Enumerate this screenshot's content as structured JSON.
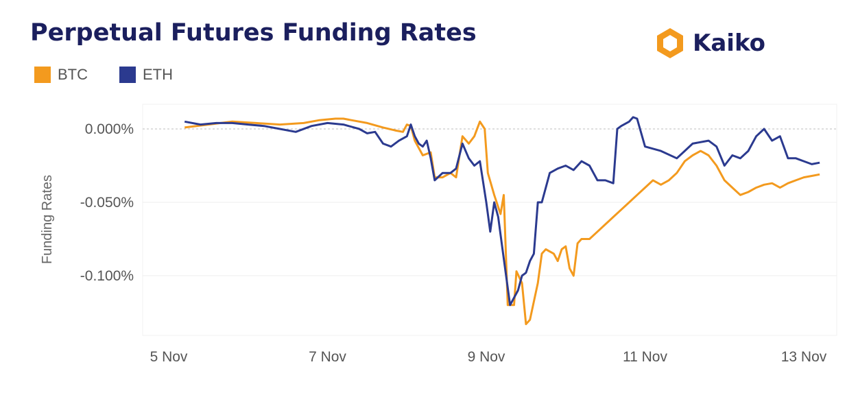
{
  "title": "Perpetual Futures Funding Rates",
  "logo": {
    "text": "Kaiko",
    "icon": "kaiko-logo-icon",
    "color": "#f39a1e"
  },
  "chart_data": {
    "type": "line",
    "title": "Perpetual Futures Funding Rates",
    "xlabel": "",
    "ylabel": "Funding Rates",
    "x_ticks": [
      "5 Nov",
      "7 Nov",
      "9 Nov",
      "11 Nov",
      "13 Nov"
    ],
    "y_ticks": [
      "0.000%",
      "-0.050%",
      "-0.100%"
    ],
    "y_tick_values": [
      0,
      -0.05,
      -0.1
    ],
    "xlim": [
      5.0,
      13.0
    ],
    "ylim": [
      -0.14,
      0.017
    ],
    "grid": true,
    "legend_position": "top-left",
    "series": [
      {
        "name": "BTC",
        "color": "#f39a1e",
        "points": [
          [
            5.2,
            0.001
          ],
          [
            5.5,
            0.003
          ],
          [
            5.8,
            0.005
          ],
          [
            6.1,
            0.004
          ],
          [
            6.4,
            0.003
          ],
          [
            6.7,
            0.004
          ],
          [
            6.9,
            0.006
          ],
          [
            7.1,
            0.007
          ],
          [
            7.2,
            0.007
          ],
          [
            7.3,
            0.006
          ],
          [
            7.5,
            0.004
          ],
          [
            7.7,
            0.001
          ],
          [
            7.85,
            -0.001
          ],
          [
            7.95,
            -0.002
          ],
          [
            8.0,
            0.003
          ],
          [
            8.05,
            0.002
          ],
          [
            8.1,
            -0.008
          ],
          [
            8.2,
            -0.018
          ],
          [
            8.3,
            -0.016
          ],
          [
            8.35,
            -0.033
          ],
          [
            8.45,
            -0.033
          ],
          [
            8.55,
            -0.03
          ],
          [
            8.62,
            -0.033
          ],
          [
            8.7,
            -0.005
          ],
          [
            8.78,
            -0.01
          ],
          [
            8.85,
            -0.005
          ],
          [
            8.92,
            0.005
          ],
          [
            8.98,
            0.0
          ],
          [
            9.02,
            -0.03
          ],
          [
            9.1,
            -0.045
          ],
          [
            9.18,
            -0.058
          ],
          [
            9.22,
            -0.045
          ],
          [
            9.27,
            -0.12
          ],
          [
            9.35,
            -0.12
          ],
          [
            9.38,
            -0.097
          ],
          [
            9.45,
            -0.105
          ],
          [
            9.5,
            -0.133
          ],
          [
            9.55,
            -0.13
          ],
          [
            9.65,
            -0.105
          ],
          [
            9.7,
            -0.085
          ],
          [
            9.75,
            -0.082
          ],
          [
            9.85,
            -0.085
          ],
          [
            9.9,
            -0.09
          ],
          [
            9.95,
            -0.082
          ],
          [
            10.0,
            -0.08
          ],
          [
            10.05,
            -0.095
          ],
          [
            10.1,
            -0.1
          ],
          [
            10.15,
            -0.078
          ],
          [
            10.2,
            -0.075
          ],
          [
            10.3,
            -0.075
          ],
          [
            10.4,
            -0.07
          ],
          [
            10.5,
            -0.065
          ],
          [
            10.6,
            -0.06
          ],
          [
            10.7,
            -0.055
          ],
          [
            10.8,
            -0.05
          ],
          [
            10.9,
            -0.045
          ],
          [
            11.0,
            -0.04
          ],
          [
            11.1,
            -0.035
          ],
          [
            11.2,
            -0.038
          ],
          [
            11.3,
            -0.035
          ],
          [
            11.4,
            -0.03
          ],
          [
            11.5,
            -0.022
          ],
          [
            11.6,
            -0.018
          ],
          [
            11.7,
            -0.015
          ],
          [
            11.8,
            -0.018
          ],
          [
            11.9,
            -0.025
          ],
          [
            12.0,
            -0.035
          ],
          [
            12.1,
            -0.04
          ],
          [
            12.2,
            -0.045
          ],
          [
            12.3,
            -0.043
          ],
          [
            12.4,
            -0.04
          ],
          [
            12.5,
            -0.038
          ],
          [
            12.6,
            -0.037
          ],
          [
            12.7,
            -0.04
          ],
          [
            12.8,
            -0.037
          ],
          [
            12.9,
            -0.035
          ],
          [
            13.0,
            -0.033
          ],
          [
            13.1,
            -0.032
          ],
          [
            13.2,
            -0.031
          ]
        ]
      },
      {
        "name": "ETH",
        "color": "#2b3a8f",
        "points": [
          [
            5.2,
            0.005
          ],
          [
            5.4,
            0.003
          ],
          [
            5.6,
            0.004
          ],
          [
            5.8,
            0.004
          ],
          [
            6.0,
            0.003
          ],
          [
            6.2,
            0.002
          ],
          [
            6.4,
            0.0
          ],
          [
            6.6,
            -0.002
          ],
          [
            6.8,
            0.002
          ],
          [
            7.0,
            0.004
          ],
          [
            7.2,
            0.003
          ],
          [
            7.4,
            0.0
          ],
          [
            7.5,
            -0.003
          ],
          [
            7.6,
            -0.002
          ],
          [
            7.7,
            -0.01
          ],
          [
            7.8,
            -0.012
          ],
          [
            7.9,
            -0.008
          ],
          [
            8.0,
            -0.005
          ],
          [
            8.05,
            0.003
          ],
          [
            8.1,
            -0.005
          ],
          [
            8.15,
            -0.01
          ],
          [
            8.2,
            -0.012
          ],
          [
            8.25,
            -0.008
          ],
          [
            8.3,
            -0.02
          ],
          [
            8.35,
            -0.035
          ],
          [
            8.45,
            -0.03
          ],
          [
            8.55,
            -0.03
          ],
          [
            8.62,
            -0.027
          ],
          [
            8.7,
            -0.01
          ],
          [
            8.78,
            -0.02
          ],
          [
            8.85,
            -0.025
          ],
          [
            8.92,
            -0.022
          ],
          [
            9.0,
            -0.05
          ],
          [
            9.05,
            -0.07
          ],
          [
            9.1,
            -0.05
          ],
          [
            9.15,
            -0.06
          ],
          [
            9.2,
            -0.08
          ],
          [
            9.25,
            -0.1
          ],
          [
            9.3,
            -0.12
          ],
          [
            9.35,
            -0.115
          ],
          [
            9.4,
            -0.11
          ],
          [
            9.45,
            -0.1
          ],
          [
            9.5,
            -0.098
          ],
          [
            9.55,
            -0.09
          ],
          [
            9.6,
            -0.085
          ],
          [
            9.65,
            -0.05
          ],
          [
            9.7,
            -0.05
          ],
          [
            9.8,
            -0.03
          ],
          [
            9.9,
            -0.027
          ],
          [
            10.0,
            -0.025
          ],
          [
            10.1,
            -0.028
          ],
          [
            10.2,
            -0.022
          ],
          [
            10.3,
            -0.025
          ],
          [
            10.4,
            -0.035
          ],
          [
            10.5,
            -0.035
          ],
          [
            10.6,
            -0.037
          ],
          [
            10.65,
            0.0
          ],
          [
            10.7,
            0.002
          ],
          [
            10.8,
            0.005
          ],
          [
            10.85,
            0.008
          ],
          [
            10.9,
            0.007
          ],
          [
            11.0,
            -0.012
          ],
          [
            11.2,
            -0.015
          ],
          [
            11.4,
            -0.02
          ],
          [
            11.5,
            -0.015
          ],
          [
            11.6,
            -0.01
          ],
          [
            11.8,
            -0.008
          ],
          [
            11.9,
            -0.012
          ],
          [
            12.0,
            -0.025
          ],
          [
            12.1,
            -0.018
          ],
          [
            12.2,
            -0.02
          ],
          [
            12.3,
            -0.015
          ],
          [
            12.4,
            -0.005
          ],
          [
            12.5,
            0.0
          ],
          [
            12.6,
            -0.008
          ],
          [
            12.7,
            -0.005
          ],
          [
            12.8,
            -0.02
          ],
          [
            12.9,
            -0.02
          ],
          [
            13.0,
            -0.022
          ],
          [
            13.1,
            -0.024
          ],
          [
            13.2,
            -0.023
          ]
        ]
      }
    ]
  }
}
